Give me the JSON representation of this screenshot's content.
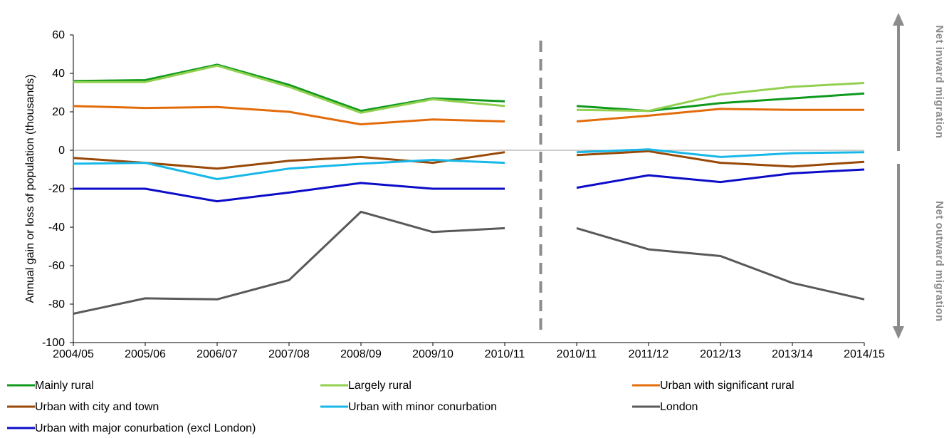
{
  "chart_data": {
    "type": "line",
    "title": "",
    "ylabel": "Annual gain or loss of population (thousands)",
    "xlabel": "",
    "ylim": [
      -100,
      60
    ],
    "yticks": [
      60,
      40,
      20,
      0,
      -20,
      -40,
      -60,
      -80,
      -100
    ],
    "grid": false,
    "legend_position": "bottom",
    "categories": [
      "2004/05",
      "2005/06",
      "2006/07",
      "2007/08",
      "2008/09",
      "2009/10",
      "2010/11",
      "2010/11",
      "2011/12",
      "2012/13",
      "2013/14",
      "2014/15"
    ],
    "break_after_index": 6,
    "side_labels": {
      "top": "Net inward migration",
      "bottom": "Net outward migration"
    },
    "series": [
      {
        "name": "Mainly rural",
        "color": "#0f9a1e",
        "values": [
          36,
          36.5,
          44.5,
          34,
          20.5,
          27,
          25.5,
          23,
          20.5,
          24.5,
          27,
          29.5
        ]
      },
      {
        "name": "Largely rural",
        "color": "#92d050",
        "values": [
          35.5,
          35.5,
          44,
          33,
          19.5,
          26.5,
          23,
          21,
          20.5,
          29,
          33,
          35
        ]
      },
      {
        "name": "Urban with significant rural",
        "color": "#e36c0a",
        "values": [
          23,
          22,
          22.5,
          20,
          13.5,
          16,
          15,
          15,
          18,
          21.5,
          21,
          21
        ]
      },
      {
        "name": "Urban with city and town",
        "color": "#984807",
        "values": [
          -4,
          -6.5,
          -9.5,
          -5.5,
          -3.5,
          -6.5,
          -1,
          -2.5,
          -0.5,
          -6.5,
          -8.5,
          -6
        ]
      },
      {
        "name": "Urban with minor conurbation",
        "color": "#17b8e8",
        "values": [
          -7,
          -6.5,
          -15,
          -9.5,
          -7,
          -5,
          -6.5,
          -1,
          0.5,
          -3.5,
          -1.5,
          -1
        ]
      },
      {
        "name": "London",
        "color": "#595959",
        "values": [
          -85,
          -77,
          -77.5,
          -67.5,
          -32,
          -42.5,
          -40.5,
          -40.5,
          -51.5,
          -55,
          -69,
          -77.5
        ]
      },
      {
        "name": "Urban with major conurbation (excl London)",
        "color": "#0c0cc8",
        "values": [
          -20,
          -20,
          -26.5,
          -22,
          -17,
          -20,
          -20,
          -19.5,
          -13,
          -16.5,
          -12,
          -10
        ]
      }
    ]
  }
}
